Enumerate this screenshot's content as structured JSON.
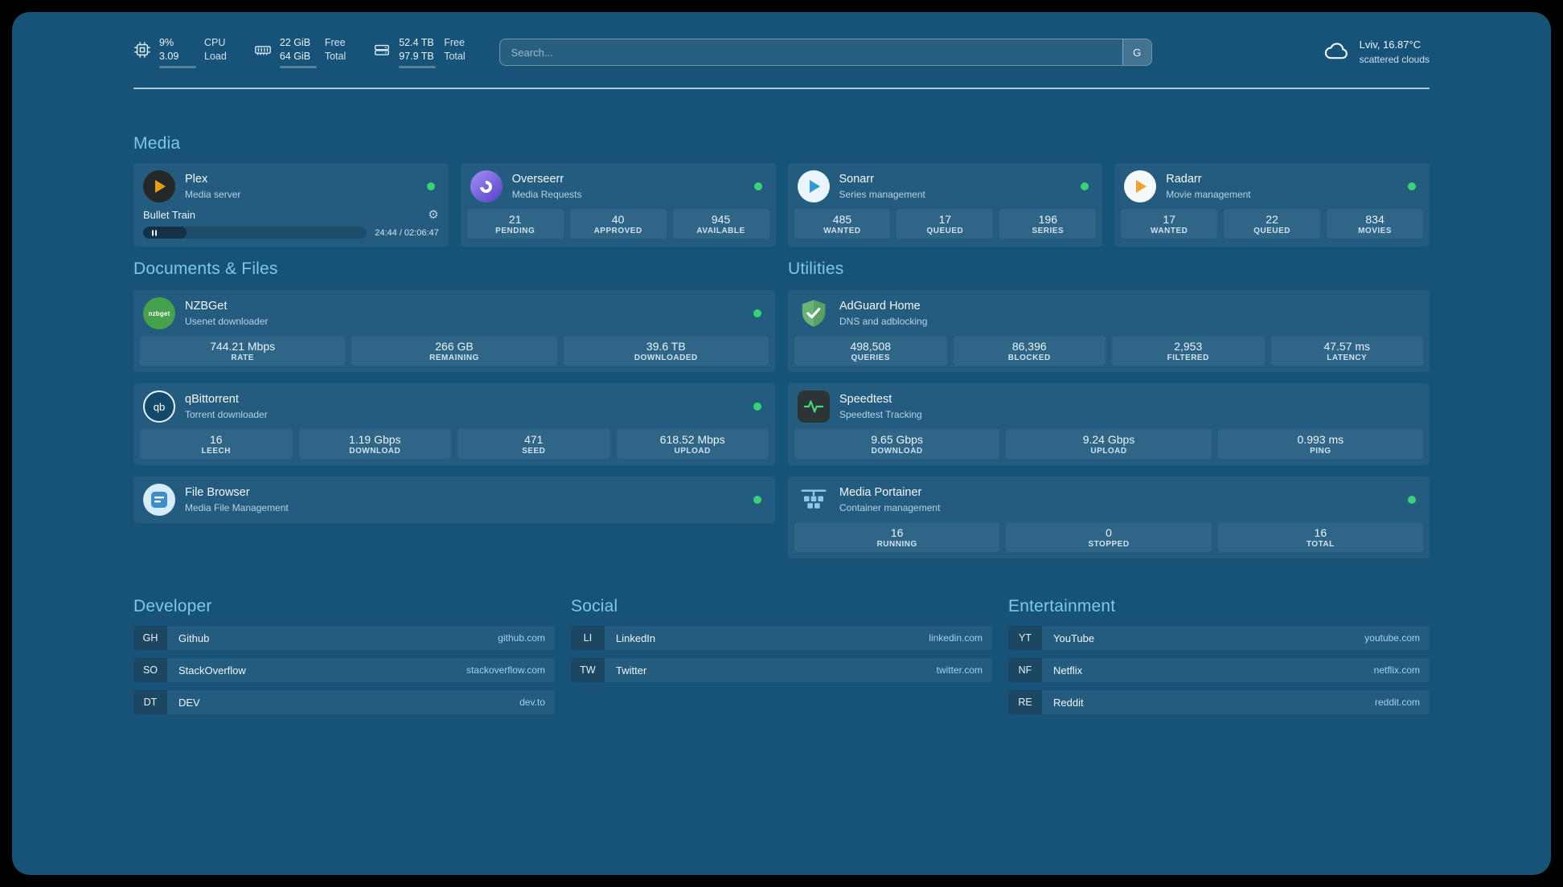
{
  "topbar": {
    "cpu": {
      "percent": "9%",
      "load": "3.09",
      "label1": "CPU",
      "label2": "Load",
      "progress": 9
    },
    "memory": {
      "free": "22 GiB",
      "total": "64 GiB",
      "label1": "Free",
      "label2": "Total",
      "progress": 66
    },
    "disk": {
      "free": "52.4 TB",
      "total": "97.9 TB",
      "label1": "Free",
      "label2": "Total",
      "progress": 46
    },
    "search": {
      "placeholder": "Search...",
      "provider": "G"
    },
    "weather": {
      "location": "Lviv, 16.87°C",
      "condition": "scattered clouds"
    }
  },
  "media": {
    "heading": "Media",
    "plex": {
      "name": "Plex",
      "subtitle": "Media server",
      "now_playing": {
        "title": "Bullet Train",
        "time": "24:44 / 02:06:47",
        "progress": 19.5
      }
    },
    "overseerr": {
      "name": "Overseerr",
      "subtitle": "Media Requests",
      "stats": [
        {
          "value": "21",
          "label": "PENDING"
        },
        {
          "value": "40",
          "label": "APPROVED"
        },
        {
          "value": "945",
          "label": "AVAILABLE"
        }
      ]
    },
    "sonarr": {
      "name": "Sonarr",
      "subtitle": "Series management",
      "stats": [
        {
          "value": "485",
          "label": "WANTED"
        },
        {
          "value": "17",
          "label": "QUEUED"
        },
        {
          "value": "196",
          "label": "SERIES"
        }
      ]
    },
    "radarr": {
      "name": "Radarr",
      "subtitle": "Movie management",
      "stats": [
        {
          "value": "17",
          "label": "WANTED"
        },
        {
          "value": "22",
          "label": "QUEUED"
        },
        {
          "value": "834",
          "label": "MOVIES"
        }
      ]
    }
  },
  "documents": {
    "heading": "Documents & Files",
    "nzbget": {
      "name": "NZBGet",
      "subtitle": "Usenet downloader",
      "icon_text": "nzbget",
      "stats": [
        {
          "value": "744.21 Mbps",
          "label": "RATE"
        },
        {
          "value": "266 GB",
          "label": "REMAINING"
        },
        {
          "value": "39.6 TB",
          "label": "DOWNLOADED"
        }
      ]
    },
    "qbittorrent": {
      "name": "qBittorrent",
      "subtitle": "Torrent downloader",
      "icon_text": "qb",
      "stats": [
        {
          "value": "16",
          "label": "LEECH"
        },
        {
          "value": "1.19 Gbps",
          "label": "DOWNLOAD"
        },
        {
          "value": "471",
          "label": "SEED"
        },
        {
          "value": "618.52 Mbps",
          "label": "UPLOAD"
        }
      ]
    },
    "filebrowser": {
      "name": "File Browser",
      "subtitle": "Media File Management"
    }
  },
  "utilities": {
    "heading": "Utilities",
    "adguard": {
      "name": "AdGuard Home",
      "subtitle": "DNS and adblocking",
      "stats": [
        {
          "value": "498,508",
          "label": "QUERIES"
        },
        {
          "value": "86,396",
          "label": "BLOCKED"
        },
        {
          "value": "2,953",
          "label": "FILTERED"
        },
        {
          "value": "47.57 ms",
          "label": "LATENCY"
        }
      ]
    },
    "speedtest": {
      "name": "Speedtest",
      "subtitle": "Speedtest Tracking",
      "stats": [
        {
          "value": "9.65 Gbps",
          "label": "DOWNLOAD"
        },
        {
          "value": "9.24 Gbps",
          "label": "UPLOAD"
        },
        {
          "value": "0.993 ms",
          "label": "PING"
        }
      ]
    },
    "portainer": {
      "name": "Media Portainer",
      "subtitle": "Container management",
      "stats": [
        {
          "value": "16",
          "label": "RUNNING"
        },
        {
          "value": "0",
          "label": "STOPPED"
        },
        {
          "value": "16",
          "label": "TOTAL"
        }
      ]
    }
  },
  "bookmarks": [
    {
      "heading": "Developer",
      "items": [
        {
          "abbr": "GH",
          "name": "Github",
          "url": "github.com"
        },
        {
          "abbr": "SO",
          "name": "StackOverflow",
          "url": "stackoverflow.com"
        },
        {
          "abbr": "DT",
          "name": "DEV",
          "url": "dev.to"
        }
      ]
    },
    {
      "heading": "Social",
      "items": [
        {
          "abbr": "LI",
          "name": "LinkedIn",
          "url": "linkedin.com"
        },
        {
          "abbr": "TW",
          "name": "Twitter",
          "url": "twitter.com"
        }
      ]
    },
    {
      "heading": "Entertainment",
      "items": [
        {
          "abbr": "YT",
          "name": "YouTube",
          "url": "youtube.com"
        },
        {
          "abbr": "NF",
          "name": "Netflix",
          "url": "netflix.com"
        },
        {
          "abbr": "RE",
          "name": "Reddit",
          "url": "reddit.com"
        }
      ]
    }
  ],
  "colors": {
    "status_online": "#38d374",
    "heading_accent": "#7dc8ec"
  }
}
